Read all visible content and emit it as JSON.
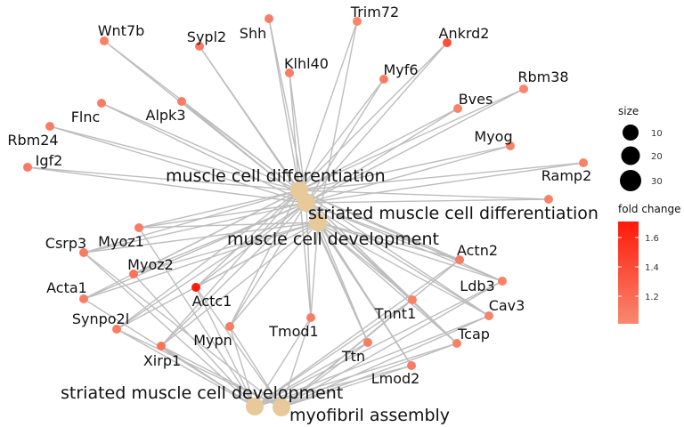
{
  "network": {
    "categories": [
      {
        "id": "mcd",
        "label": "muscle cell differentiation"
      },
      {
        "id": "smcdiff",
        "label": "striated muscle cell differentiation"
      },
      {
        "id": "mcdev",
        "label": "muscle cell development"
      },
      {
        "id": "smcdev",
        "label": "striated muscle cell development"
      },
      {
        "id": "mfa",
        "label": "myofibril assembly"
      }
    ],
    "genes": [
      {
        "id": "Wnt7b",
        "label": "Wnt7b",
        "fold": 1.05
      },
      {
        "id": "Sypl2",
        "label": "Sypl2",
        "fold": 1.1
      },
      {
        "id": "Shh",
        "label": "Shh",
        "fold": 1.08
      },
      {
        "id": "Trim72",
        "label": "Trim72",
        "fold": 1.02
      },
      {
        "id": "Ankrd2",
        "label": "Ankrd2",
        "fold": 1.4
      },
      {
        "id": "Klhl40",
        "label": "Klhl40",
        "fold": 1.08
      },
      {
        "id": "Myf6",
        "label": "Myf6",
        "fold": 1.08
      },
      {
        "id": "Rbm38",
        "label": "Rbm38",
        "fold": 1.02
      },
      {
        "id": "Bves",
        "label": "Bves",
        "fold": 1.05
      },
      {
        "id": "Flnc",
        "label": "Flnc",
        "fold": 1.08
      },
      {
        "id": "Alpk3",
        "label": "Alpk3",
        "fold": 1.08
      },
      {
        "id": "Rbm24",
        "label": "Rbm24",
        "fold": 1.08
      },
      {
        "id": "Myog",
        "label": "Myog",
        "fold": 1.05
      },
      {
        "id": "Igf2",
        "label": "Igf2",
        "fold": 1.1
      },
      {
        "id": "Ramp2",
        "label": "Ramp2",
        "fold": 1.05
      },
      {
        "id": "Csrp3",
        "label": "Csrp3",
        "fold": 1.1
      },
      {
        "id": "Myoz1",
        "label": "Myoz1",
        "fold": 1.08
      },
      {
        "id": "Actn2",
        "label": "Actn2",
        "fold": 1.1
      },
      {
        "id": "Myoz2",
        "label": "Myoz2",
        "fold": 1.15
      },
      {
        "id": "Ldb3",
        "label": "Ldb3",
        "fold": 1.05
      },
      {
        "id": "Acta1",
        "label": "Acta1",
        "fold": 1.08
      },
      {
        "id": "Actc1",
        "label": "Actc1",
        "fold": 1.75
      },
      {
        "id": "Tnnt1",
        "label": "Tnnt1",
        "fold": 1.05
      },
      {
        "id": "Cav3",
        "label": "Cav3",
        "fold": 1.05
      },
      {
        "id": "Synpo2l",
        "label": "Synpo2l",
        "fold": 1.08
      },
      {
        "id": "Tmod1",
        "label": "Tmod1",
        "fold": 1.08
      },
      {
        "id": "Mypn",
        "label": "Mypn",
        "fold": 1.08
      },
      {
        "id": "Tcap",
        "label": "Tcap",
        "fold": 1.05
      },
      {
        "id": "Xirp1",
        "label": "Xirp1",
        "fold": 1.15
      },
      {
        "id": "Ttn",
        "label": "Ttn",
        "fold": 1.08
      },
      {
        "id": "Lmod2",
        "label": "Lmod2",
        "fold": 1.08
      }
    ],
    "edges": [
      [
        "Wnt7b",
        "mcd"
      ],
      [
        "Wnt7b",
        "smcdiff"
      ],
      [
        "Sypl2",
        "mcd"
      ],
      [
        "Sypl2",
        "smcdiff"
      ],
      [
        "Shh",
        "mcd"
      ],
      [
        "Shh",
        "smcdiff"
      ],
      [
        "Trim72",
        "mcd"
      ],
      [
        "Trim72",
        "mcdev"
      ],
      [
        "Ankrd2",
        "mcd"
      ],
      [
        "Ankrd2",
        "smcdiff"
      ],
      [
        "Klhl40",
        "mcd"
      ],
      [
        "Klhl40",
        "smcdiff"
      ],
      [
        "Myf6",
        "mcd"
      ],
      [
        "Myf6",
        "smcdiff"
      ],
      [
        "Rbm38",
        "mcd"
      ],
      [
        "Rbm38",
        "smcdiff"
      ],
      [
        "Bves",
        "mcd"
      ],
      [
        "Bves",
        "smcdiff"
      ],
      [
        "Flnc",
        "mcd"
      ],
      [
        "Flnc",
        "smcdiff"
      ],
      [
        "Alpk3",
        "mcd"
      ],
      [
        "Alpk3",
        "smcdiff"
      ],
      [
        "Rbm24",
        "mcd"
      ],
      [
        "Rbm24",
        "smcdiff"
      ],
      [
        "Myog",
        "mcd"
      ],
      [
        "Myog",
        "smcdiff"
      ],
      [
        "Igf2",
        "mcd"
      ],
      [
        "Igf2",
        "smcdiff"
      ],
      [
        "Ramp2",
        "mcd"
      ],
      [
        "Ramp2",
        "smcdiff"
      ],
      [
        "Csrp3",
        "mcd"
      ],
      [
        "Csrp3",
        "smcdiff"
      ],
      [
        "Csrp3",
        "mcdev"
      ],
      [
        "Csrp3",
        "smcdev"
      ],
      [
        "Csrp3",
        "mfa"
      ],
      [
        "Myoz1",
        "mcd"
      ],
      [
        "Myoz1",
        "smcdiff"
      ],
      [
        "Myoz1",
        "mcdev"
      ],
      [
        "Myoz1",
        "smcdev"
      ],
      [
        "Actn2",
        "mcd"
      ],
      [
        "Actn2",
        "smcdiff"
      ],
      [
        "Actn2",
        "mcdev"
      ],
      [
        "Actn2",
        "smcdev"
      ],
      [
        "Actn2",
        "mfa"
      ],
      [
        "Myoz2",
        "mcd"
      ],
      [
        "Myoz2",
        "smcdiff"
      ],
      [
        "Myoz2",
        "mcdev"
      ],
      [
        "Myoz2",
        "smcdev"
      ],
      [
        "Ldb3",
        "mcd"
      ],
      [
        "Ldb3",
        "smcdiff"
      ],
      [
        "Ldb3",
        "mcdev"
      ],
      [
        "Ldb3",
        "smcdev"
      ],
      [
        "Ldb3",
        "mfa"
      ],
      [
        "Acta1",
        "mcd"
      ],
      [
        "Acta1",
        "smcdiff"
      ],
      [
        "Acta1",
        "mcdev"
      ],
      [
        "Acta1",
        "smcdev"
      ],
      [
        "Actc1",
        "mcd"
      ],
      [
        "Actc1",
        "smcdiff"
      ],
      [
        "Actc1",
        "mcdev"
      ],
      [
        "Actc1",
        "smcdev"
      ],
      [
        "Actc1",
        "mfa"
      ],
      [
        "Tnnt1",
        "mcd"
      ],
      [
        "Tnnt1",
        "smcdiff"
      ],
      [
        "Tnnt1",
        "mcdev"
      ],
      [
        "Tnnt1",
        "smcdev"
      ],
      [
        "Tnnt1",
        "mfa"
      ],
      [
        "Cav3",
        "mcd"
      ],
      [
        "Cav3",
        "smcdiff"
      ],
      [
        "Cav3",
        "mcdev"
      ],
      [
        "Cav3",
        "smcdev"
      ],
      [
        "Cav3",
        "mfa"
      ],
      [
        "Synpo2l",
        "mcd"
      ],
      [
        "Synpo2l",
        "smcdiff"
      ],
      [
        "Synpo2l",
        "mcdev"
      ],
      [
        "Synpo2l",
        "smcdev"
      ],
      [
        "Synpo2l",
        "mfa"
      ],
      [
        "Tmod1",
        "mcd"
      ],
      [
        "Tmod1",
        "smcdiff"
      ],
      [
        "Tmod1",
        "mcdev"
      ],
      [
        "Tmod1",
        "smcdev"
      ],
      [
        "Tmod1",
        "mfa"
      ],
      [
        "Mypn",
        "mcd"
      ],
      [
        "Mypn",
        "smcdiff"
      ],
      [
        "Mypn",
        "mcdev"
      ],
      [
        "Mypn",
        "smcdev"
      ],
      [
        "Mypn",
        "mfa"
      ],
      [
        "Tcap",
        "mcd"
      ],
      [
        "Tcap",
        "smcdiff"
      ],
      [
        "Tcap",
        "mcdev"
      ],
      [
        "Tcap",
        "smcdev"
      ],
      [
        "Tcap",
        "mfa"
      ],
      [
        "Xirp1",
        "mcd"
      ],
      [
        "Xirp1",
        "smcdiff"
      ],
      [
        "Xirp1",
        "mcdev"
      ],
      [
        "Xirp1",
        "smcdev"
      ],
      [
        "Xirp1",
        "mfa"
      ],
      [
        "Ttn",
        "mcd"
      ],
      [
        "Ttn",
        "smcdiff"
      ],
      [
        "Ttn",
        "mcdev"
      ],
      [
        "Ttn",
        "smcdev"
      ],
      [
        "Ttn",
        "mfa"
      ],
      [
        "Lmod2",
        "mcd"
      ],
      [
        "Lmod2",
        "smcdiff"
      ],
      [
        "Lmod2",
        "mcdev"
      ],
      [
        "Lmod2",
        "smcdev"
      ],
      [
        "Lmod2",
        "mfa"
      ]
    ]
  },
  "legend": {
    "size_title": "size",
    "size_values": [
      "10",
      "20",
      "30"
    ],
    "color_title": "fold change",
    "color_ticks": [
      "1.6",
      "1.4",
      "1.2"
    ],
    "color_low": "#f8896f",
    "color_high": "#ff1a0a",
    "category_color": "#e8c99a",
    "edge_color": "#bdbdbd"
  }
}
